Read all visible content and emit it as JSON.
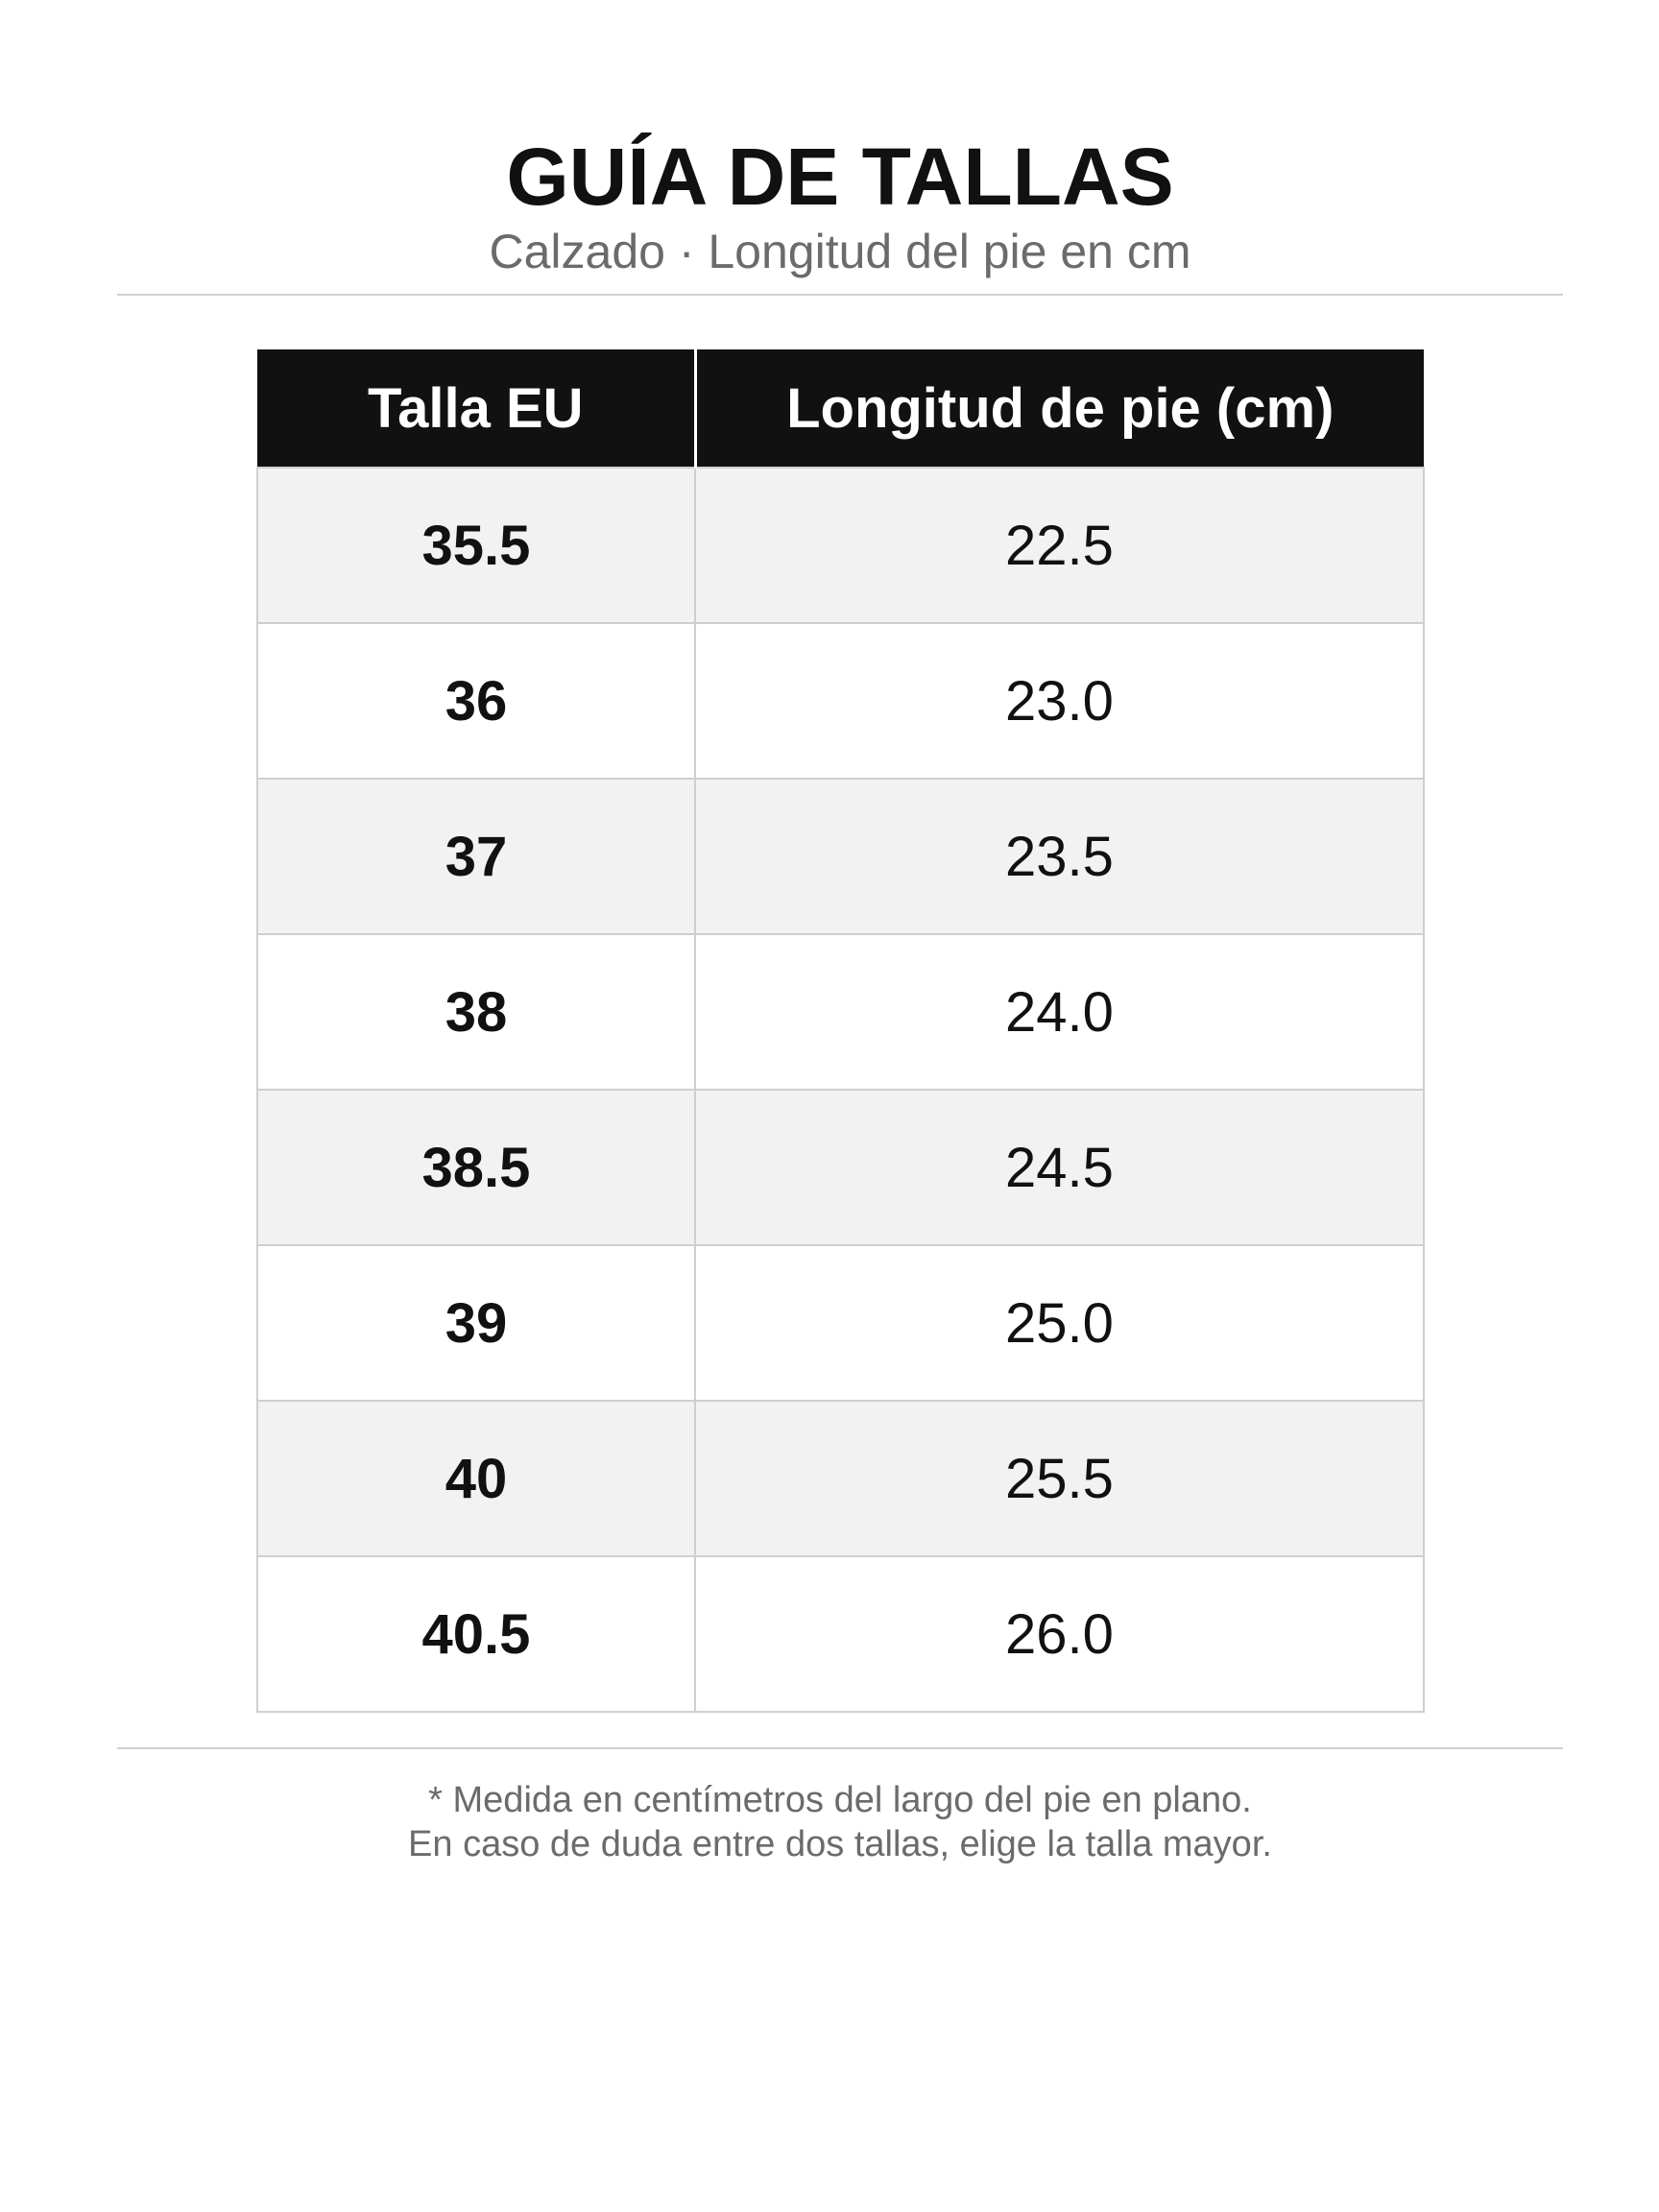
{
  "header": {
    "title": "GUÍA DE TALLAS",
    "subtitle": "Calzado · Longitud del pie en cm"
  },
  "table": {
    "columns": [
      "Talla EU",
      "Longitud de pie (cm)"
    ],
    "rows": [
      {
        "size": "35.5",
        "length": "22.5"
      },
      {
        "size": "36",
        "length": "23.0"
      },
      {
        "size": "37",
        "length": "23.5"
      },
      {
        "size": "38",
        "length": "24.0"
      },
      {
        "size": "38.5",
        "length": "24.5"
      },
      {
        "size": "39",
        "length": "25.0"
      },
      {
        "size": "40",
        "length": "25.5"
      },
      {
        "size": "40.5",
        "length": "26.0"
      }
    ]
  },
  "footer": {
    "note_1": "* Medida en centímetros del largo del pie en plano.",
    "note_2": "En caso de duda entre dos tallas, elige la talla mayor."
  },
  "colors": {
    "header_bg": "#111111",
    "header_text": "#ffffff",
    "alt_row": "#f2f2f2",
    "muted_text": "#6b6b6b"
  }
}
